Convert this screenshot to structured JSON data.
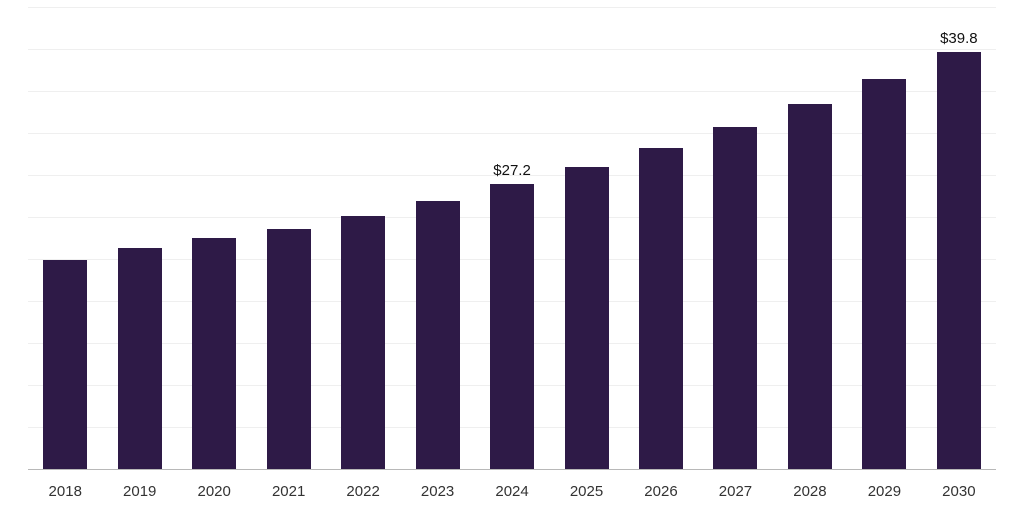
{
  "chart_data": {
    "type": "bar",
    "title": "",
    "xlabel": "",
    "ylabel": "",
    "categories": [
      "2018",
      "2019",
      "2020",
      "2021",
      "2022",
      "2023",
      "2024",
      "2025",
      "2026",
      "2027",
      "2028",
      "2029",
      "2030"
    ],
    "values": [
      20.0,
      21.1,
      22.1,
      23.0,
      24.2,
      25.6,
      27.2,
      28.9,
      30.7,
      32.7,
      34.9,
      37.2,
      39.8
    ],
    "point_labels": [
      "",
      "",
      "",
      "",
      "",
      "",
      "$27.2",
      "",
      "",
      "",
      "",
      "",
      "$39.8"
    ],
    "ylim": [
      0,
      44
    ],
    "gridline_step": 4,
    "grid": true,
    "legend": "none",
    "bar_color": "#2e1a47",
    "background_color": "#ffffff",
    "gridline_color": "#efefef",
    "axis_line_color": "#b8b8b8",
    "tick_label_color": "#333333",
    "data_label_color": "#111111"
  }
}
